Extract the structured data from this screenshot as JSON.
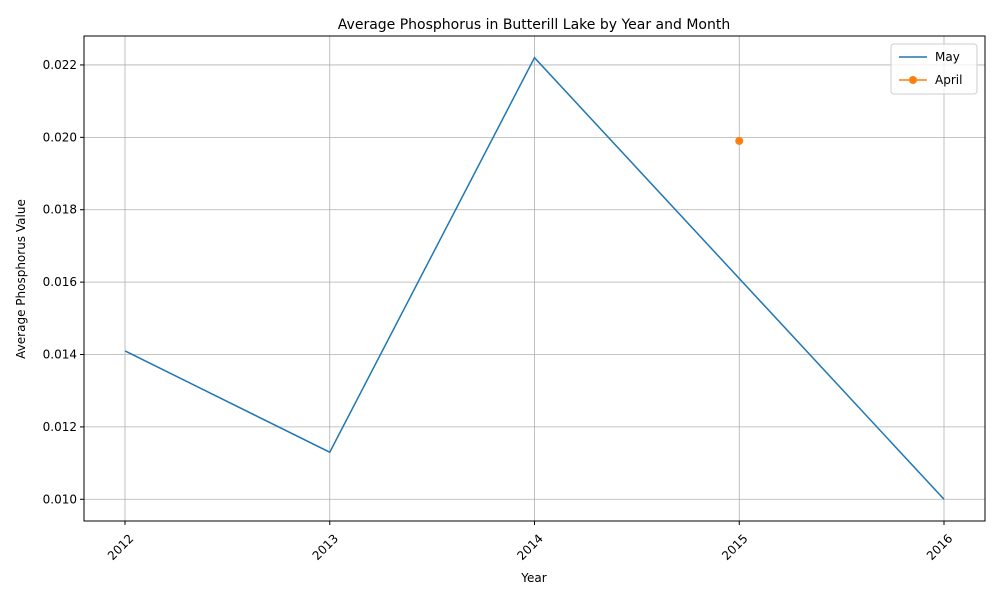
{
  "chart_data": {
    "type": "line",
    "title": "Average Phosphorus in Butterill Lake by Year and Month",
    "xlabel": "Year",
    "ylabel": "Average Phosphorus Value",
    "x": [
      "2012",
      "2013",
      "2014",
      "2015",
      "2016"
    ],
    "ylim": [
      0.0094,
      0.0228
    ],
    "yticks": [
      "0.010",
      "0.012",
      "0.014",
      "0.016",
      "0.018",
      "0.020",
      "0.022"
    ],
    "grid": true,
    "legend_position": "top-right",
    "series": [
      {
        "name": "May",
        "color": "#1f77b4",
        "marker": "none",
        "points": [
          {
            "x": "2012",
            "y": 0.0141
          },
          {
            "x": "2013",
            "y": 0.0113
          },
          {
            "x": "2014",
            "y": 0.0222
          },
          {
            "x": "2016",
            "y": 0.01
          }
        ]
      },
      {
        "name": "April",
        "color": "#ff7f0e",
        "marker": "circle",
        "points": [
          {
            "x": "2015",
            "y": 0.0199
          }
        ]
      }
    ]
  }
}
